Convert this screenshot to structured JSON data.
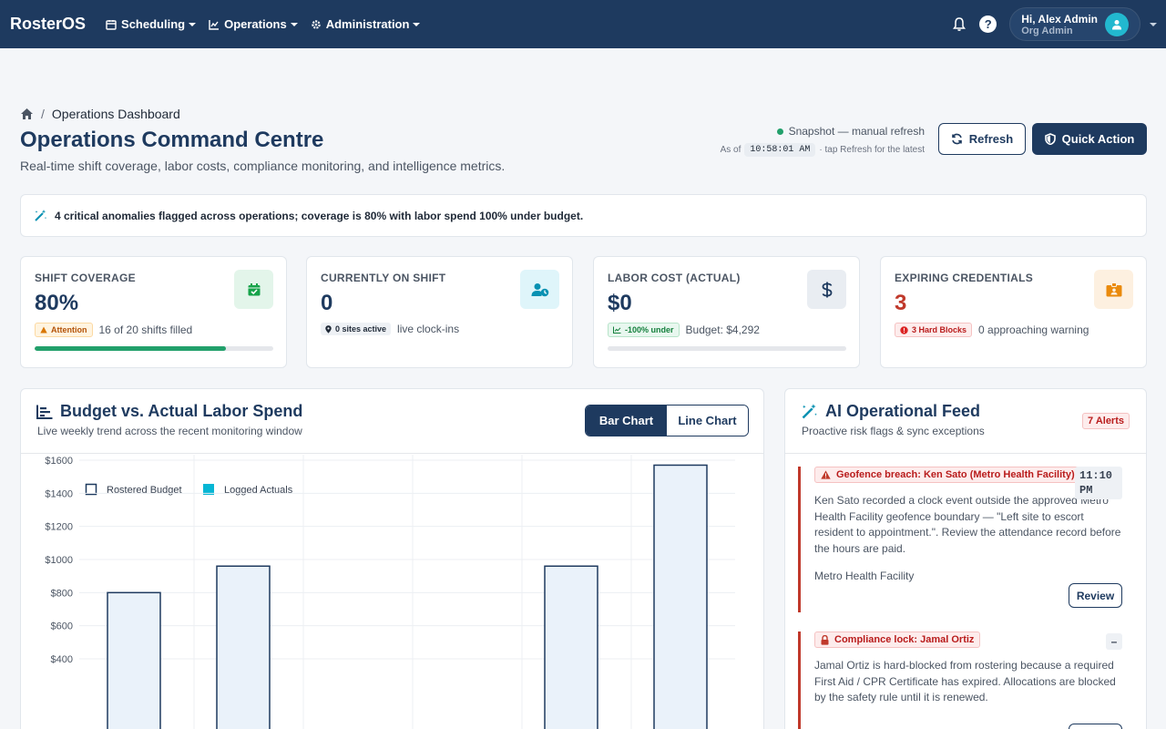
{
  "nav": {
    "brand": "RosterOS",
    "menus": [
      {
        "label": "Scheduling",
        "icon": "calendar-icon"
      },
      {
        "label": "Operations",
        "icon": "chart-line-icon"
      },
      {
        "label": "Administration",
        "icon": "gear-icon"
      }
    ],
    "help": "?",
    "user": {
      "greeting": "Hi, Alex Admin",
      "role": "Org Admin"
    }
  },
  "header": {
    "breadcrumb": "Operations Dashboard",
    "title": "Operations Command Centre",
    "subtitle": "Real-time shift coverage, labor costs, compliance monitoring, and intelligence metrics.",
    "snapshot": "Snapshot — manual refresh",
    "as_of_prefix": "As of",
    "as_of_time": "10:58:01 AM",
    "as_of_suffix": "· tap Refresh for the latest",
    "refresh_label": "Refresh",
    "quick_action_label": "Quick Action"
  },
  "banner": {
    "text": "4 critical anomalies flagged across operations; coverage is 80% with labor spend 100% under budget."
  },
  "kpis": {
    "coverage": {
      "label": "SHIFT COVERAGE",
      "value": "80%",
      "badge": "Attention",
      "meta": "16 of 20 shifts filled",
      "progress": 0.8,
      "icon": "calendar-check-icon"
    },
    "on_shift": {
      "label": "CURRENTLY ON SHIFT",
      "value": "0",
      "badge": "0 sites active",
      "meta": "live clock-ins",
      "icon": "user-clock-icon"
    },
    "labor": {
      "label": "LABOR COST (ACTUAL)",
      "value": "$0",
      "badge": "-100% under",
      "meta": "Budget: $4,292",
      "progress": 0,
      "icon": "dollar-icon"
    },
    "credentials": {
      "label": "EXPIRING CREDENTIALS",
      "value": "3",
      "badge": "3 Hard Blocks",
      "meta": "0 approaching warning",
      "icon": "id-badge-icon"
    }
  },
  "chart_panel": {
    "title": "Budget vs. Actual Labor Spend",
    "subtitle": "Live weekly trend across the recent monitoring window",
    "toggle_bar": "Bar Chart",
    "toggle_line": "Line Chart"
  },
  "chart_data": {
    "type": "bar",
    "series": [
      {
        "name": "Rostered Budget",
        "values": [
          800,
          960,
          null,
          null,
          960,
          1570
        ],
        "color": "#1e3a5f"
      },
      {
        "name": "Logged Actuals",
        "values": [
          0,
          0,
          0,
          0,
          0,
          0
        ],
        "color": "#06b6d4"
      }
    ],
    "ylim": [
      400,
      1700
    ],
    "yticks": [
      "$1600",
      "$1400",
      "$1200",
      "$1000",
      "$800",
      "$600",
      "$400"
    ],
    "ytick_values": [
      1600,
      1400,
      1200,
      1000,
      800,
      600,
      400
    ],
    "grid": true,
    "legend": "top-left"
  },
  "feed": {
    "title": "AI Operational Feed",
    "subtitle": "Proactive risk flags & sync exceptions",
    "badge": "7 Alerts",
    "items": [
      {
        "tag": "Geofence breach: Ken Sato (Metro Health Facility)",
        "time": "11:10 PM",
        "body": "Ken Sato recorded a clock event outside the approved Metro Health Facility geofence boundary — \"Left site to escort resident to appointment.\". Review the attendance record before the hours are paid.",
        "site": "Metro Health Facility",
        "action": "Review"
      },
      {
        "tag": "Compliance lock: Jamal Ortiz",
        "time": "–",
        "body": "Jamal Ortiz is hard-blocked from rostering because a required First Aid / CPR Certificate has expired. Allocations are blocked by the safety rule until it is renewed."
      }
    ]
  }
}
